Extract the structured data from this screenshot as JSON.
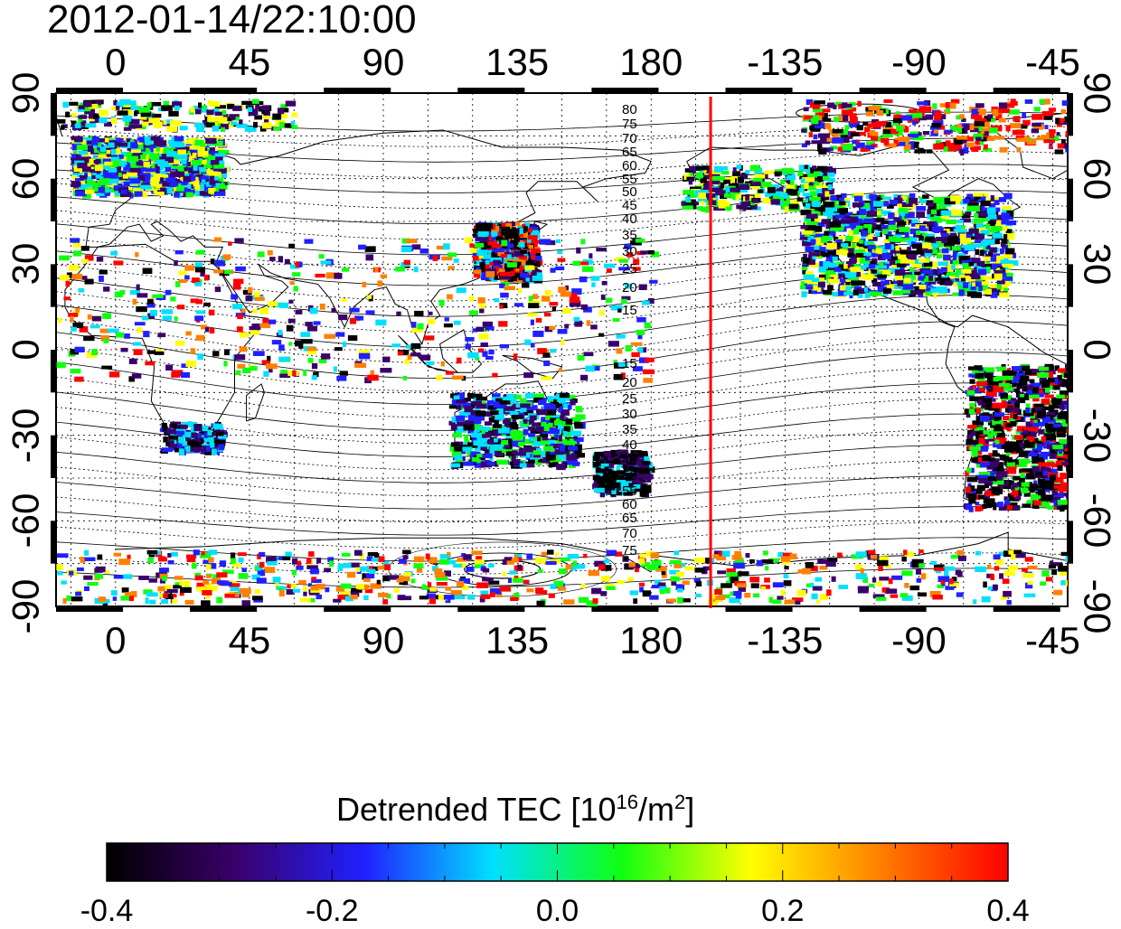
{
  "title": "2012-01-14/22:10:00",
  "colorbar": {
    "label_main": "Detrended TEC  [10",
    "label_exp1": "16",
    "label_mid": "/m",
    "label_exp2": "2",
    "label_end": "]",
    "ticks": [
      "-0.4",
      "-0.2",
      "0.0",
      "0.2",
      "0.4"
    ],
    "range": [
      -0.4,
      0.4
    ],
    "colors": [
      "#000000",
      "#3a006a",
      "#2020ff",
      "#00e0ff",
      "#10ff10",
      "#ffff00",
      "#ff8000",
      "#ff0000"
    ]
  },
  "axes": {
    "lon_ticks": [
      "0",
      "45",
      "90",
      "135",
      "180",
      "-135",
      "-90",
      "-45"
    ],
    "lat_ticks": [
      "90",
      "60",
      "30",
      "0",
      "-30",
      "-60",
      "-90"
    ]
  },
  "map": {
    "projection": "equirectangular",
    "lon_range": [
      -20,
      320
    ],
    "lat_range": [
      -90,
      90
    ],
    "grid": true,
    "terminator_lon": -160,
    "terminator_color": "#ff0000",
    "magnetic_latitude_labels_north": [
      "80",
      "75",
      "70",
      "65",
      "60",
      "55",
      "50",
      "45",
      "40",
      "35",
      "30",
      "25",
      "20",
      "15"
    ],
    "magnetic_latitude_labels_south": [
      "15",
      "20",
      "25",
      "30",
      "35",
      "40",
      "45",
      "50",
      "55",
      "60",
      "65",
      "70",
      "75"
    ]
  }
}
